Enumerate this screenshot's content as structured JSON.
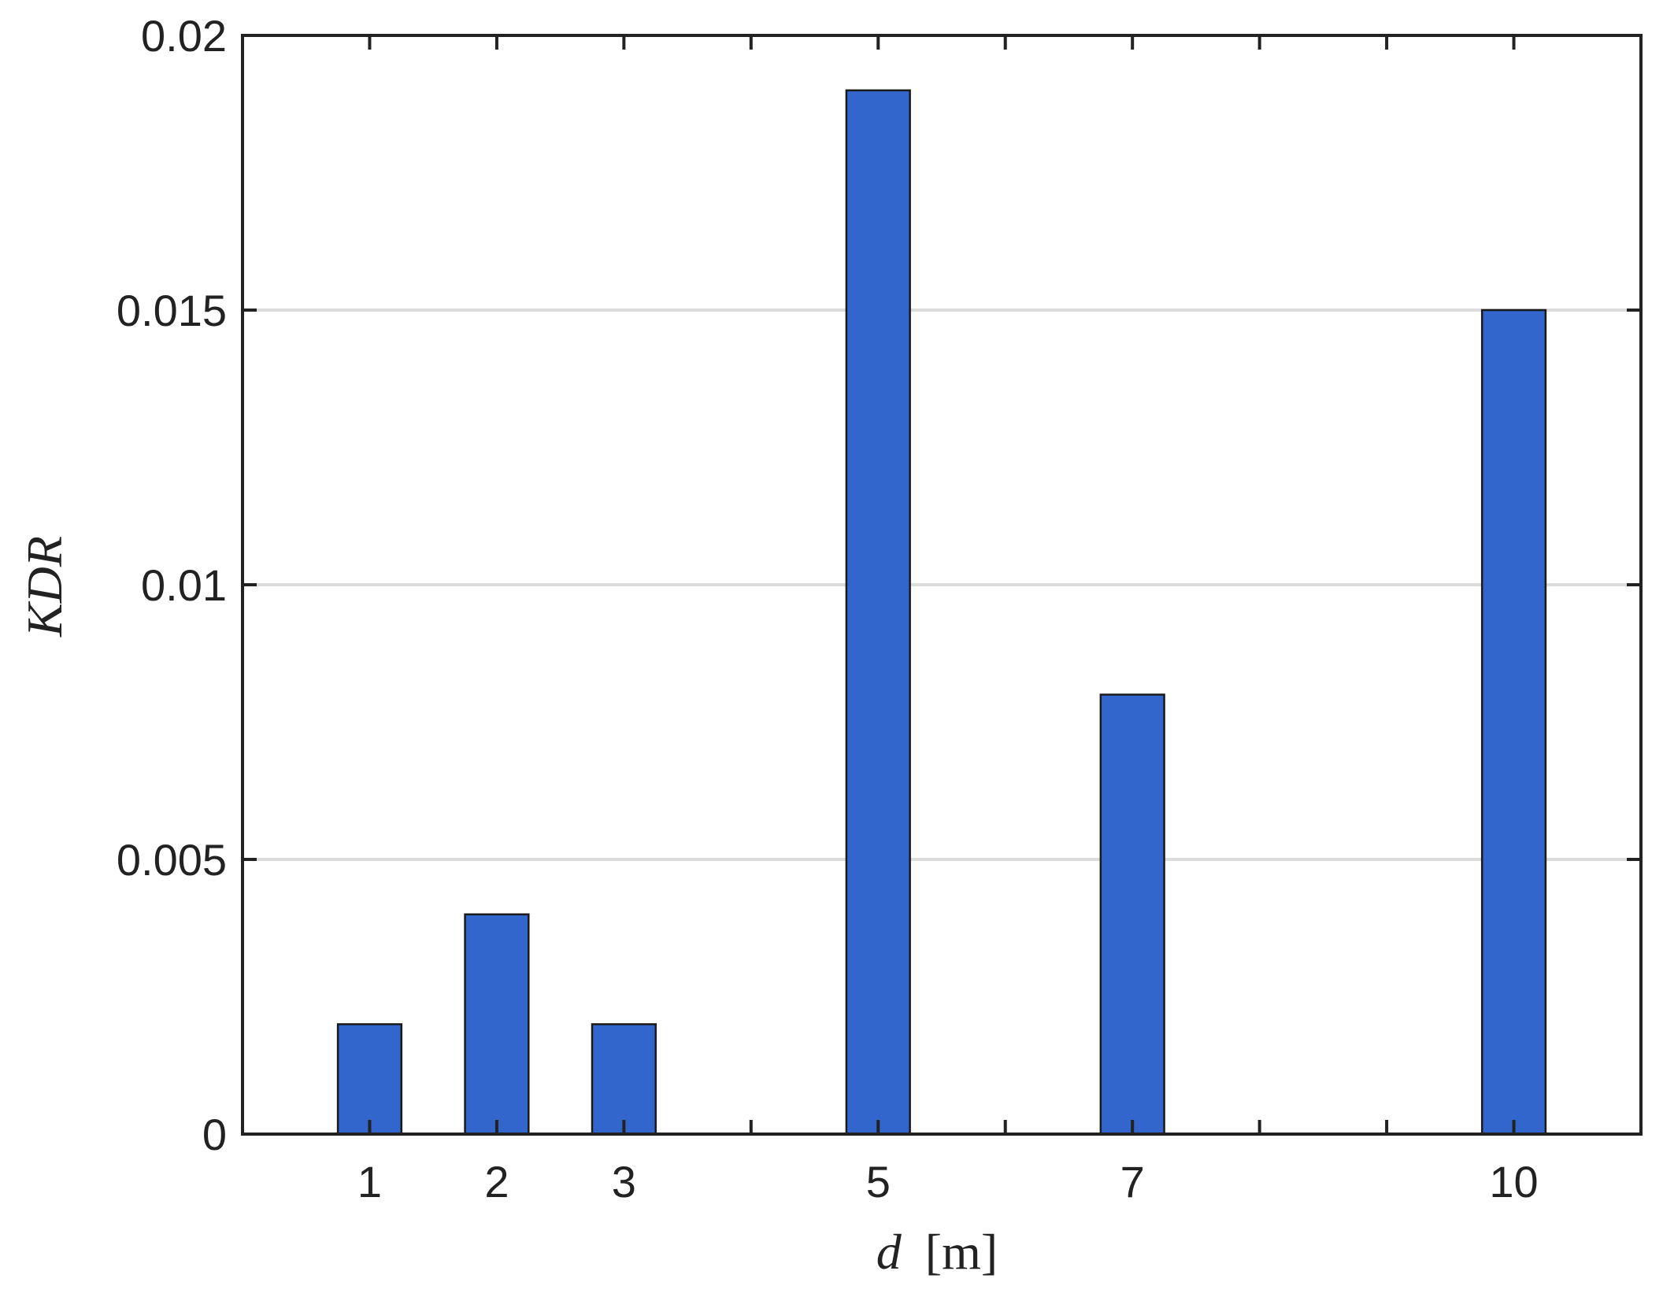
{
  "chart_data": {
    "type": "bar",
    "x": [
      1,
      2,
      3,
      5,
      7,
      10
    ],
    "values": [
      0.002,
      0.004,
      0.002,
      0.019,
      0.008,
      0.015
    ],
    "xlabel_var": "d",
    "xlabel_unit": "[m]",
    "ylabel": "KDR",
    "xlim": [
      0,
      11
    ],
    "ylim": [
      0,
      0.02
    ],
    "xticks": [
      1,
      2,
      3,
      5,
      7,
      10
    ],
    "xtick_labels": [
      "1",
      "2",
      "3",
      "5",
      "7",
      "10"
    ],
    "xminor_ticks": [
      4,
      6,
      8,
      9
    ],
    "yticks": [
      0,
      0.005,
      0.01,
      0.015,
      0.02
    ],
    "ytick_labels": [
      "0",
      "0.005",
      "0.01",
      "0.015",
      "0.02"
    ],
    "grid": "horizontal",
    "bar_color": "#3366cc",
    "bar_edge_color": "#1a1a1a",
    "grid_color": "#dcdcdc",
    "axis_color": "#222222"
  }
}
